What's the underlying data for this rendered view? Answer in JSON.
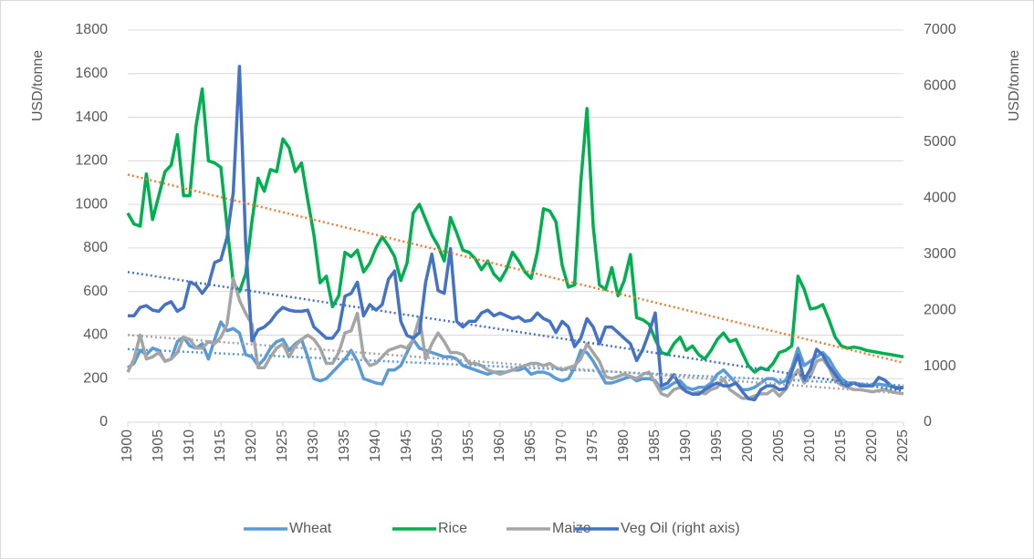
{
  "chart_data": {
    "type": "line",
    "x": [
      1900,
      1901,
      1902,
      1903,
      1904,
      1905,
      1906,
      1907,
      1908,
      1909,
      1910,
      1911,
      1912,
      1913,
      1914,
      1915,
      1916,
      1917,
      1918,
      1919,
      1920,
      1921,
      1922,
      1923,
      1924,
      1925,
      1926,
      1927,
      1928,
      1929,
      1930,
      1931,
      1932,
      1933,
      1934,
      1935,
      1936,
      1937,
      1938,
      1939,
      1940,
      1941,
      1942,
      1943,
      1944,
      1945,
      1946,
      1947,
      1948,
      1949,
      1950,
      1951,
      1952,
      1953,
      1954,
      1955,
      1956,
      1957,
      1958,
      1959,
      1960,
      1961,
      1962,
      1963,
      1964,
      1965,
      1966,
      1967,
      1968,
      1969,
      1970,
      1971,
      1972,
      1973,
      1974,
      1975,
      1976,
      1977,
      1978,
      1979,
      1980,
      1981,
      1982,
      1983,
      1984,
      1985,
      1986,
      1987,
      1988,
      1989,
      1990,
      1991,
      1992,
      1993,
      1994,
      1995,
      1996,
      1997,
      1998,
      1999,
      2000,
      2001,
      2002,
      2003,
      2004,
      2005,
      2006,
      2007,
      2008,
      2009,
      2010,
      2011,
      2012,
      2013,
      2014,
      2015,
      2016,
      2017,
      2018,
      2019,
      2020,
      2021,
      2022,
      2023,
      2024,
      2025
    ],
    "xlim": [
      1900,
      2025
    ],
    "xticks": [
      1900,
      1905,
      1910,
      1915,
      1920,
      1925,
      1930,
      1935,
      1940,
      1945,
      1950,
      1955,
      1960,
      1965,
      1970,
      1975,
      1980,
      1985,
      1990,
      1995,
      2000,
      2005,
      2010,
      2015,
      2020,
      2025
    ],
    "y_label": "USD/tonne",
    "y2_label": "USD/tonne",
    "ylim": [
      0,
      1800
    ],
    "yticks": [
      0,
      200,
      400,
      600,
      800,
      1000,
      1200,
      1400,
      1600,
      1800
    ],
    "y2lim": [
      0,
      7000
    ],
    "y2ticks": [
      0,
      1000,
      2000,
      3000,
      4000,
      5000,
      6000,
      7000
    ],
    "trendline": true,
    "legend": "bottom",
    "series": [
      {
        "name": "Wheat",
        "color": "#5b9bd5",
        "trend_color": "#5b9bd5",
        "values": [
          250,
          270,
          330,
          310,
          340,
          330,
          280,
          290,
          370,
          390,
          350,
          340,
          360,
          290,
          380,
          460,
          420,
          430,
          410,
          310,
          300,
          260,
          290,
          340,
          370,
          380,
          330,
          360,
          380,
          300,
          200,
          190,
          200,
          230,
          260,
          290,
          330,
          280,
          200,
          190,
          180,
          175,
          240,
          240,
          260,
          320,
          380,
          340,
          330,
          320,
          310,
          300,
          300,
          290,
          260,
          250,
          240,
          230,
          220,
          230,
          230,
          230,
          240,
          240,
          250,
          220,
          230,
          230,
          220,
          200,
          190,
          200,
          250,
          330,
          320,
          280,
          230,
          180,
          180,
          190,
          200,
          210,
          190,
          200,
          200,
          190,
          150,
          160,
          180,
          190,
          160,
          150,
          160,
          160,
          180,
          220,
          240,
          210,
          180,
          150,
          150,
          160,
          180,
          200,
          200,
          180,
          190,
          250,
          340,
          260,
          280,
          300,
          320,
          290,
          240,
          200,
          180,
          180,
          175,
          170,
          170,
          175,
          170,
          165,
          160,
          160
        ]
      },
      {
        "name": "Rice",
        "color": "#00b050",
        "trend_color": "#ed7d31",
        "values": [
          960,
          910,
          900,
          1140,
          930,
          1040,
          1150,
          1180,
          1320,
          1040,
          1040,
          1360,
          1530,
          1200,
          1190,
          1170,
          900,
          640,
          600,
          680,
          920,
          1120,
          1060,
          1160,
          1150,
          1300,
          1260,
          1150,
          1190,
          1020,
          860,
          640,
          670,
          530,
          580,
          780,
          760,
          790,
          690,
          730,
          800,
          850,
          810,
          760,
          650,
          730,
          960,
          1000,
          930,
          860,
          810,
          740,
          940,
          870,
          790,
          780,
          750,
          700,
          740,
          680,
          650,
          700,
          780,
          740,
          690,
          660,
          780,
          980,
          970,
          920,
          720,
          620,
          630,
          1100,
          1440,
          900,
          630,
          610,
          710,
          580,
          650,
          770,
          480,
          470,
          450,
          380,
          320,
          310,
          360,
          390,
          330,
          350,
          310,
          290,
          330,
          380,
          410,
          370,
          380,
          320,
          260,
          230,
          250,
          240,
          270,
          320,
          330,
          350,
          670,
          610,
          520,
          525,
          540,
          470,
          390,
          350,
          340,
          345,
          340,
          330,
          325,
          320,
          315,
          310,
          305,
          300
        ]
      },
      {
        "name": "Maize",
        "color": "#a5a5a5",
        "trend_color": "#a5a5a5",
        "values": [
          230,
          290,
          400,
          290,
          300,
          320,
          280,
          290,
          320,
          390,
          380,
          340,
          340,
          370,
          360,
          390,
          450,
          660,
          560,
          500,
          450,
          250,
          250,
          300,
          340,
          360,
          300,
          350,
          380,
          400,
          380,
          340,
          270,
          270,
          320,
          410,
          420,
          500,
          300,
          260,
          270,
          300,
          330,
          340,
          350,
          340,
          380,
          480,
          290,
          360,
          410,
          370,
          320,
          320,
          310,
          270,
          270,
          260,
          240,
          230,
          220,
          230,
          240,
          250,
          260,
          270,
          270,
          260,
          270,
          250,
          240,
          250,
          260,
          290,
          360,
          320,
          280,
          210,
          200,
          210,
          220,
          210,
          200,
          220,
          230,
          180,
          130,
          120,
          150,
          160,
          140,
          130,
          140,
          130,
          150,
          160,
          200,
          150,
          130,
          110,
          110,
          120,
          130,
          130,
          150,
          120,
          150,
          200,
          240,
          180,
          210,
          280,
          290,
          250,
          190,
          170,
          160,
          150,
          150,
          145,
          140,
          145,
          150,
          140,
          135,
          130
        ]
      },
      {
        "name": "Veg Oil (right axis)",
        "color": "#4472c4",
        "trend_color": "#4472c4",
        "axis": "y2",
        "values": [
          1900,
          1900,
          2050,
          2080,
          2000,
          1980,
          2100,
          2150,
          1980,
          2050,
          2500,
          2450,
          2300,
          2450,
          2850,
          2900,
          3300,
          4100,
          6350,
          3200,
          1450,
          1650,
          1700,
          1800,
          1950,
          2050,
          2000,
          1980,
          1980,
          2000,
          1700,
          1600,
          1500,
          1500,
          1650,
          2250,
          2300,
          2500,
          1900,
          2100,
          2000,
          2100,
          2550,
          2700,
          1800,
          1550,
          1500,
          1600,
          2500,
          3000,
          2350,
          2300,
          3100,
          1800,
          1700,
          1800,
          1800,
          1950,
          2000,
          1900,
          1950,
          1900,
          1850,
          1880,
          1800,
          1820,
          1950,
          1850,
          1800,
          1600,
          1800,
          1700,
          1350,
          1500,
          1850,
          1700,
          1400,
          1700,
          1700,
          1600,
          1500,
          1400,
          1100,
          1300,
          1600,
          1950,
          650,
          700,
          850,
          650,
          550,
          500,
          500,
          580,
          650,
          700,
          650,
          650,
          700,
          550,
          420,
          400,
          580,
          650,
          650,
          580,
          600,
          900,
          1200,
          750,
          950,
          1300,
          1200,
          1000,
          850,
          700,
          650,
          700,
          650,
          650,
          650,
          800,
          750,
          650,
          600,
          620
        ]
      }
    ]
  }
}
